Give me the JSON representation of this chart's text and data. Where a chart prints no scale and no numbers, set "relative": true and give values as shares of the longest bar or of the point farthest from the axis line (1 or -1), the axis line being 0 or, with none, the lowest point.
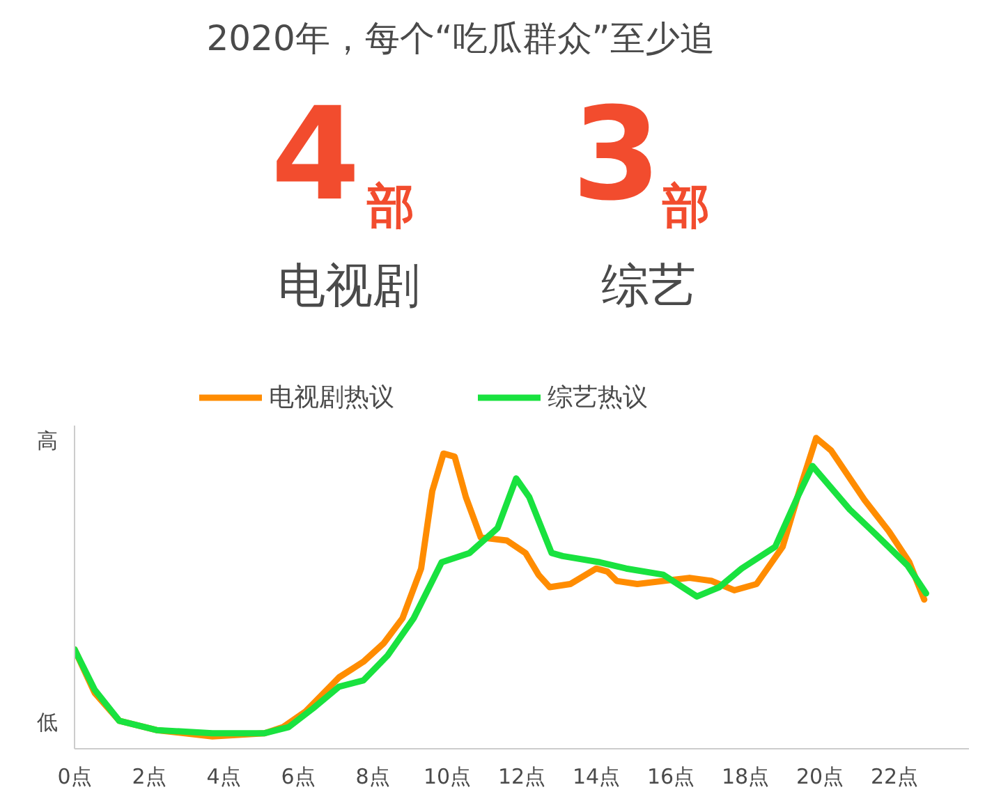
{
  "chart_data": {
    "type": "line",
    "title": "2020年，每个“吃瓜群众”至少追",
    "annotations": [
      "4",
      "部",
      "电视剧",
      "3",
      "部",
      "综艺",
      "高",
      "低"
    ],
    "relative": true,
    "legend": "top",
    "grid": false,
    "line_style": "solid",
    "marker": "none",
    "xlim": [
      0,
      24
    ],
    "xticks": [
      {
        "value": 0,
        "label": "0点"
      },
      {
        "value": 2,
        "label": "2点"
      },
      {
        "value": 4,
        "label": "4点"
      },
      {
        "value": 6,
        "label": "6点"
      },
      {
        "value": 8,
        "label": "8点"
      },
      {
        "value": 10,
        "label": "10点"
      },
      {
        "value": 12,
        "label": "12点"
      },
      {
        "value": 14,
        "label": "14点"
      },
      {
        "value": 16,
        "label": "16点"
      },
      {
        "value": 18,
        "label": "18点"
      },
      {
        "value": 20,
        "label": "20点"
      },
      {
        "value": 22,
        "label": "22点"
      }
    ],
    "series": [
      {
        "name": "电视剧热议",
        "color": "#ff8c00",
        "x": [
          0,
          0.54,
          1.2,
          2.2,
          3.7,
          5.1,
          5.6,
          6.2,
          7.1,
          7.75,
          8.3,
          8.8,
          9.3,
          9.6,
          9.9,
          10.2,
          10.5,
          10.9,
          11.6,
          12.1,
          12.45,
          12.75,
          13.3,
          14.0,
          14.3,
          14.55,
          15.1,
          16.5,
          17.1,
          17.7,
          18.3,
          19.0,
          19.5,
          19.9,
          20.3,
          21.2,
          21.85,
          22.4,
          22.8
        ],
        "values": [
          0.32,
          0.18,
          0.09,
          0.06,
          0.04,
          0.05,
          0.07,
          0.12,
          0.23,
          0.28,
          0.34,
          0.42,
          0.58,
          0.83,
          0.95,
          0.94,
          0.81,
          0.68,
          0.67,
          0.63,
          0.56,
          0.52,
          0.53,
          0.58,
          0.57,
          0.54,
          0.53,
          0.55,
          0.54,
          0.51,
          0.53,
          0.65,
          0.85,
          1.0,
          0.96,
          0.8,
          0.7,
          0.6,
          0.48
        ]
      },
      {
        "name": "综艺热议",
        "color": "#19e23f",
        "x": [
          0,
          0.54,
          1.2,
          2.2,
          3.7,
          5.1,
          5.75,
          6.4,
          7.1,
          7.75,
          8.4,
          9.1,
          9.85,
          10.6,
          11.35,
          11.6,
          11.85,
          12.2,
          12.8,
          13.1,
          14.1,
          14.8,
          15.8,
          16.7,
          17.3,
          17.9,
          18.8,
          19.4,
          19.8,
          20.8,
          21.5,
          22.35,
          22.85
        ],
        "values": [
          0.32,
          0.19,
          0.09,
          0.06,
          0.05,
          0.05,
          0.07,
          0.13,
          0.2,
          0.22,
          0.3,
          0.42,
          0.6,
          0.63,
          0.71,
          0.79,
          0.87,
          0.81,
          0.63,
          0.62,
          0.6,
          0.58,
          0.56,
          0.49,
          0.52,
          0.58,
          0.65,
          0.81,
          0.91,
          0.77,
          0.69,
          0.59,
          0.5
        ]
      }
    ]
  }
}
